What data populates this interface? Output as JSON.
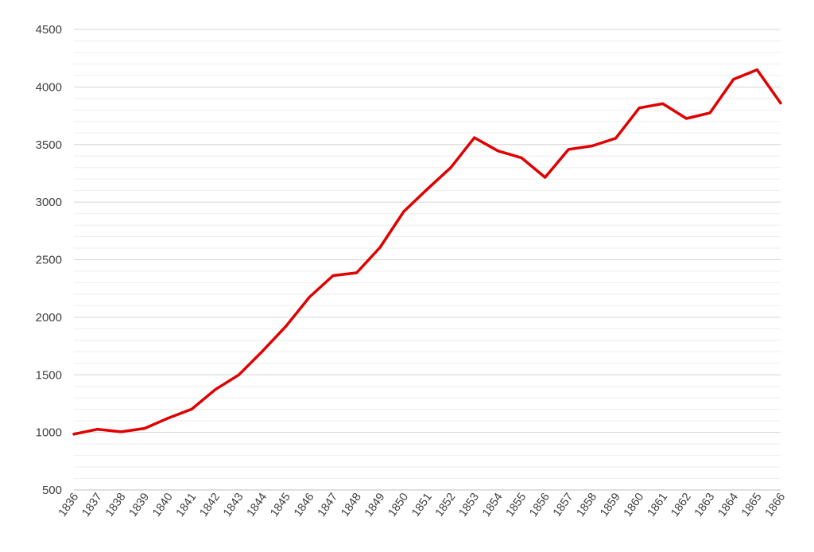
{
  "chart_data": {
    "type": "line",
    "title": "",
    "xlabel": "",
    "ylabel": "",
    "x": [
      "1836",
      "1837",
      "1838",
      "1839",
      "1840",
      "1841",
      "1842",
      "1843",
      "1844",
      "1845",
      "1846",
      "1847",
      "1848",
      "1849",
      "1850",
      "1851",
      "1852",
      "1853",
      "1854",
      "1855",
      "1856",
      "1857",
      "1858",
      "1859",
      "1860",
      "1861",
      "1862",
      "1863",
      "1864",
      "1865",
      "1866"
    ],
    "series": [
      {
        "values": [
          985,
          1027,
          1005,
          1035,
          1124,
          1202,
          1372,
          1500,
          1705,
          1922,
          2175,
          2362,
          2386,
          2608,
          2918,
          3113,
          3300,
          3560,
          3445,
          3385,
          3215,
          3458,
          3488,
          3555,
          3818,
          3855,
          3726,
          3775,
          4066,
          4150,
          3860
        ],
        "color": "#e00000"
      }
    ],
    "ylim": [
      500,
      4500
    ],
    "yticks": [
      "500",
      "1000",
      "1500",
      "2000",
      "2500",
      "3000",
      "3500",
      "4000",
      "4500"
    ],
    "grid": true,
    "legend": "none"
  }
}
